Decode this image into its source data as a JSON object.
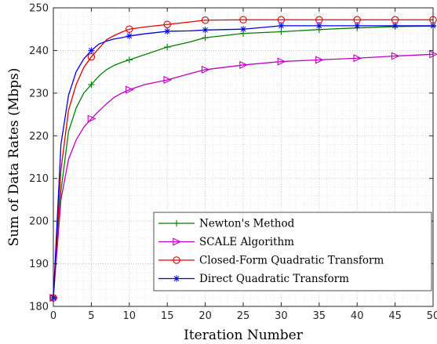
{
  "chart_data": {
    "type": "line",
    "xlabel": "Iteration Number",
    "ylabel": "Sum of Data Rates (Mbps)",
    "xlim": [
      0,
      50
    ],
    "ylim": [
      180,
      250
    ],
    "xticks": [
      0,
      5,
      10,
      15,
      20,
      25,
      30,
      35,
      40,
      45,
      50
    ],
    "yticks": [
      180,
      190,
      200,
      210,
      220,
      230,
      240,
      250
    ],
    "grid": true,
    "minor_grid": true,
    "legend_position": "lower-center",
    "series": [
      {
        "name": "Newton's Method",
        "color": "#008000",
        "marker": "plus",
        "x": [
          0,
          1,
          2,
          3,
          4,
          5,
          6,
          7,
          8,
          9,
          10,
          12,
          15,
          18,
          20,
          25,
          30,
          35,
          40,
          45,
          50
        ],
        "y": [
          182,
          207,
          221,
          226.5,
          230,
          232,
          234,
          235.5,
          236.5,
          237.2,
          237.8,
          239,
          240.8,
          242,
          243,
          244,
          244.4,
          244.9,
          245.3,
          245.6,
          245.7
        ]
      },
      {
        "name": "SCALE Algorithm",
        "color": "#C000C0",
        "marker": "triangle-right",
        "x": [
          0,
          1,
          2,
          3,
          4,
          5,
          6,
          7,
          8,
          9,
          10,
          12,
          15,
          18,
          20,
          25,
          30,
          35,
          40,
          45,
          50
        ],
        "y": [
          182,
          205,
          214.5,
          219,
          222,
          224,
          225.8,
          227.5,
          229,
          230,
          230.8,
          232,
          233.1,
          234.6,
          235.5,
          236.6,
          237.4,
          237.8,
          238.2,
          238.7,
          239.1
        ]
      },
      {
        "name": "Closed-Form Quadratic Transform",
        "color": "#E00000",
        "marker": "circle",
        "x": [
          0,
          1,
          2,
          3,
          4,
          5,
          6,
          7,
          8,
          9,
          10,
          12,
          15,
          18,
          20,
          25,
          30,
          35,
          40,
          45,
          50
        ],
        "y": [
          182,
          212,
          226,
          232,
          236,
          238.5,
          240.5,
          242.5,
          243.5,
          244.3,
          245,
          245.5,
          246.1,
          246.7,
          247.1,
          247.2,
          247.2,
          247.2,
          247.2,
          247.2,
          247.2
        ]
      },
      {
        "name": "Direct Quadratic Transform",
        "color": "#0000E0",
        "marker": "asterisk",
        "x": [
          0,
          1,
          2,
          3,
          4,
          5,
          6,
          7,
          8,
          9,
          10,
          12,
          15,
          18,
          20,
          25,
          30,
          35,
          40,
          45,
          50
        ],
        "y": [
          182,
          218,
          229.5,
          235,
          238,
          240,
          241.5,
          242.2,
          242.7,
          243,
          243.4,
          243.9,
          244.5,
          244.6,
          244.8,
          245,
          245.8,
          245.8,
          245.8,
          245.8,
          245.8
        ]
      }
    ]
  }
}
